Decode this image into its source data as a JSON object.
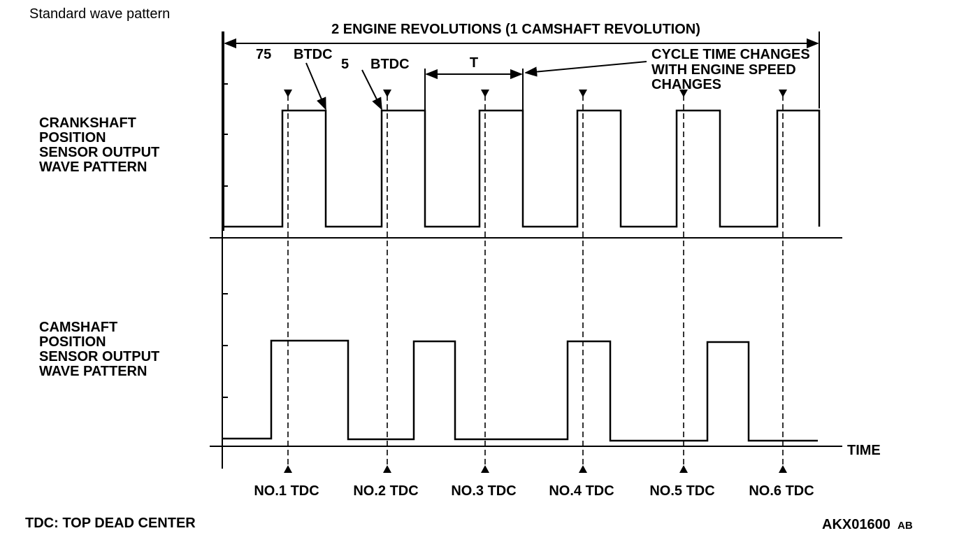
{
  "header": {
    "title": "Standard wave pattern"
  },
  "span_label": "2 ENGINE REVOLUTIONS (1 CAMSHAFT REVOLUTION)",
  "annotations": {
    "angle_1": "75",
    "btdc_1": "BTDC",
    "angle_2": "5",
    "btdc_2": "BTDC",
    "period": "T",
    "cycle_note": [
      "CYCLE TIME CHANGES",
      "WITH ENGINE SPEED",
      "CHANGES"
    ]
  },
  "crankshaft_label": [
    "CRANKSHAFT",
    "POSITION",
    "SENSOR OUTPUT",
    "WAVE PATTERN"
  ],
  "camshaft_label": [
    "CAMSHAFT",
    "POSITION",
    "SENSOR OUTPUT",
    "WAVE PATTERN"
  ],
  "time_label": "TIME",
  "tdc_labels": [
    "NO.1 TDC",
    "NO.2 TDC",
    "NO.3 TDC",
    "NO.4 TDC",
    "NO.5 TDC",
    "NO.6 TDC"
  ],
  "footer": {
    "legend": "TDC: TOP DEAD CENTER",
    "code": "AKX01600",
    "suffix": "AB"
  }
}
